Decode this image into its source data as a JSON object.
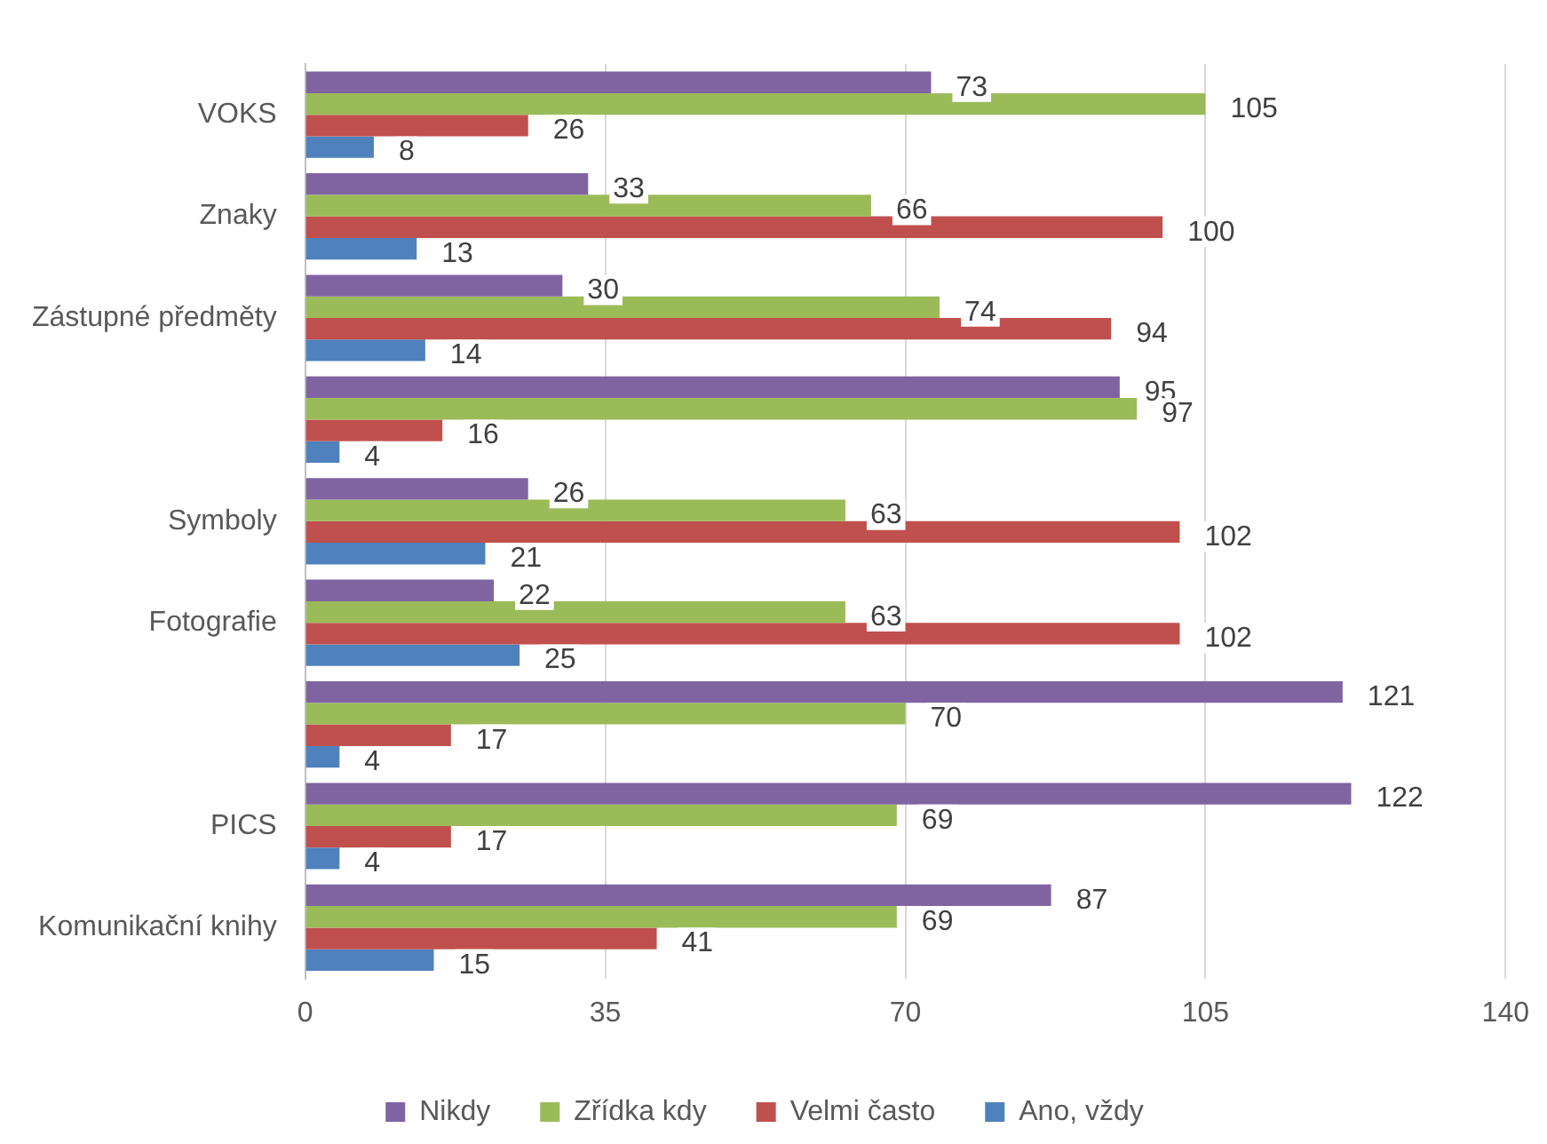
{
  "chart_data": {
    "type": "bar",
    "orientation": "horizontal",
    "categories": [
      "VOKS",
      "Znaky",
      "Zástupné předměty",
      null,
      "Symboly",
      "Fotografie",
      null,
      "PICS",
      "Komunikační knihy"
    ],
    "series": [
      {
        "name": "Nikdy",
        "color": "#8064a2",
        "values": [
          73,
          33,
          30,
          95,
          26,
          22,
          121,
          122,
          87
        ]
      },
      {
        "name": "Zřídka kdy",
        "color": "#9bbb59",
        "values": [
          105,
          66,
          74,
          97,
          63,
          63,
          70,
          69,
          69
        ]
      },
      {
        "name": "Velmi často",
        "color": "#c0504d",
        "values": [
          26,
          100,
          94,
          16,
          102,
          102,
          17,
          17,
          41
        ]
      },
      {
        "name": "Ano, vždy",
        "color": "#4f81bd",
        "values": [
          8,
          13,
          14,
          4,
          21,
          25,
          4,
          4,
          15
        ]
      }
    ],
    "xlim": [
      0,
      140
    ],
    "xticks": [
      0,
      35,
      70,
      105,
      140
    ],
    "grid": "x",
    "legend": "bottom",
    "data_labels": true
  }
}
